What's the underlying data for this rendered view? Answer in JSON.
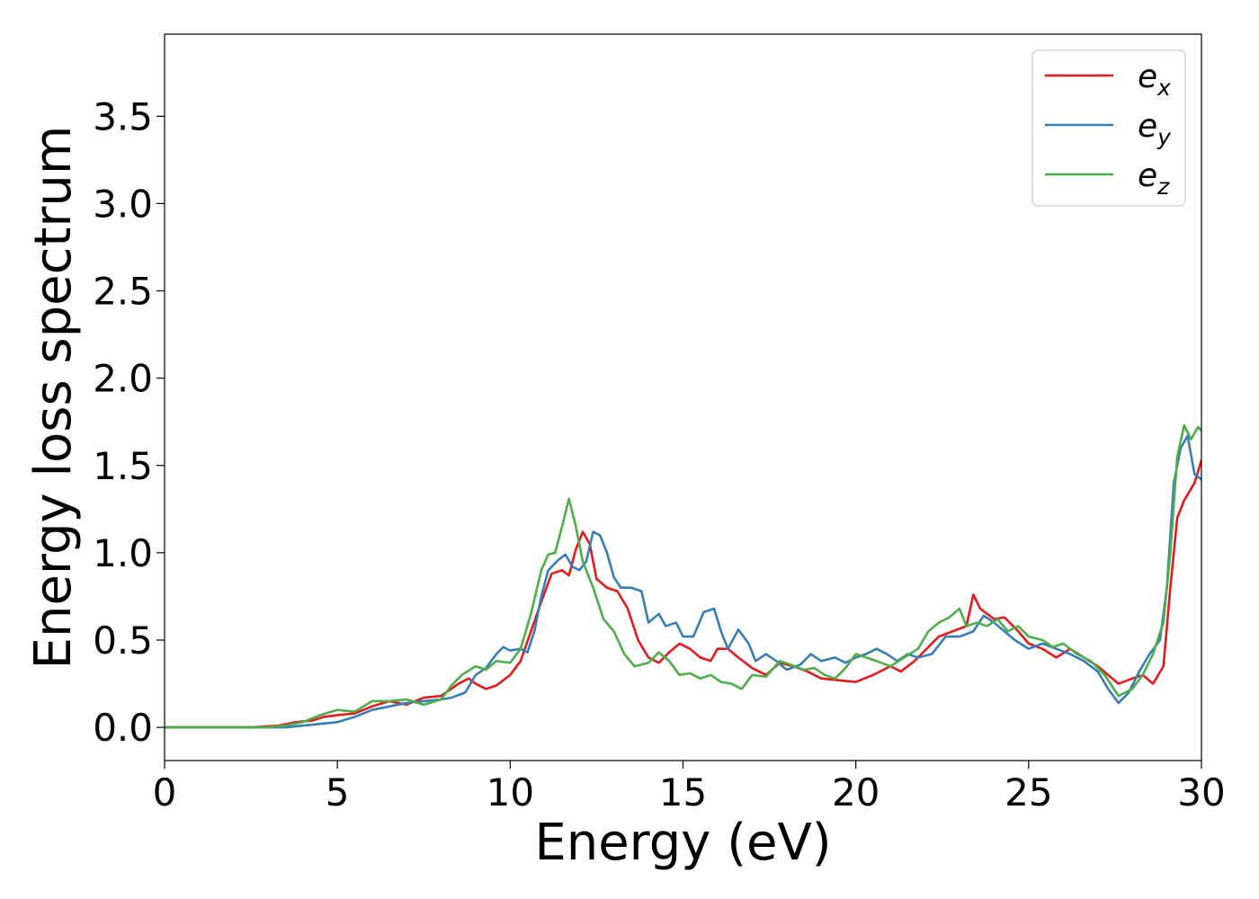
{
  "chart_data": {
    "type": "line",
    "title": "",
    "xlabel": "Energy (eV)",
    "ylabel": "Energy loss spectrum",
    "xlim": [
      0,
      30
    ],
    "ylim": [
      -0.19,
      3.97
    ],
    "xticks": [
      0,
      5,
      10,
      15,
      20,
      25,
      30
    ],
    "yticks": [
      0.0,
      0.5,
      1.0,
      1.5,
      2.0,
      2.5,
      3.0,
      3.5
    ],
    "grid": false,
    "legend_position": "top-right",
    "series": [
      {
        "name": "e_x",
        "label_base": "e",
        "label_sub": "x",
        "color": "#e41a1c",
        "points": [
          [
            0,
            0
          ],
          [
            2.5,
            0
          ],
          [
            3.3,
            0.01
          ],
          [
            3.8,
            0.03
          ],
          [
            4.3,
            0.04
          ],
          [
            4.6,
            0.06
          ],
          [
            5.0,
            0.07
          ],
          [
            5.5,
            0.08
          ],
          [
            6.0,
            0.12
          ],
          [
            6.5,
            0.15
          ],
          [
            7.0,
            0.13
          ],
          [
            7.5,
            0.17
          ],
          [
            8.0,
            0.18
          ],
          [
            8.5,
            0.25
          ],
          [
            8.8,
            0.28
          ],
          [
            9.0,
            0.25
          ],
          [
            9.3,
            0.22
          ],
          [
            9.6,
            0.24
          ],
          [
            10.0,
            0.3
          ],
          [
            10.3,
            0.38
          ],
          [
            10.6,
            0.55
          ],
          [
            10.9,
            0.72
          ],
          [
            11.2,
            0.88
          ],
          [
            11.5,
            0.9
          ],
          [
            11.7,
            0.87
          ],
          [
            11.9,
            1.02
          ],
          [
            12.1,
            1.12
          ],
          [
            12.3,
            1.05
          ],
          [
            12.5,
            0.85
          ],
          [
            12.8,
            0.8
          ],
          [
            13.1,
            0.78
          ],
          [
            13.4,
            0.68
          ],
          [
            13.7,
            0.5
          ],
          [
            14.0,
            0.4
          ],
          [
            14.3,
            0.37
          ],
          [
            14.6,
            0.43
          ],
          [
            14.9,
            0.48
          ],
          [
            15.2,
            0.45
          ],
          [
            15.5,
            0.4
          ],
          [
            15.8,
            0.38
          ],
          [
            16.0,
            0.45
          ],
          [
            16.3,
            0.45
          ],
          [
            16.6,
            0.4
          ],
          [
            17.0,
            0.34
          ],
          [
            17.4,
            0.3
          ],
          [
            17.8,
            0.37
          ],
          [
            18.2,
            0.35
          ],
          [
            18.6,
            0.32
          ],
          [
            19.0,
            0.28
          ],
          [
            19.5,
            0.27
          ],
          [
            20.0,
            0.26
          ],
          [
            20.5,
            0.3
          ],
          [
            21.0,
            0.35
          ],
          [
            21.3,
            0.32
          ],
          [
            21.7,
            0.38
          ],
          [
            22.0,
            0.44
          ],
          [
            22.4,
            0.52
          ],
          [
            22.8,
            0.55
          ],
          [
            23.2,
            0.58
          ],
          [
            23.4,
            0.76
          ],
          [
            23.6,
            0.68
          ],
          [
            24.0,
            0.62
          ],
          [
            24.3,
            0.63
          ],
          [
            24.7,
            0.55
          ],
          [
            25.0,
            0.48
          ],
          [
            25.4,
            0.45
          ],
          [
            25.8,
            0.4
          ],
          [
            26.2,
            0.45
          ],
          [
            26.6,
            0.4
          ],
          [
            27.0,
            0.35
          ],
          [
            27.3,
            0.3
          ],
          [
            27.6,
            0.25
          ],
          [
            28.0,
            0.28
          ],
          [
            28.3,
            0.3
          ],
          [
            28.6,
            0.25
          ],
          [
            28.9,
            0.35
          ],
          [
            29.1,
            0.8
          ],
          [
            29.3,
            1.2
          ],
          [
            29.5,
            1.3
          ],
          [
            29.8,
            1.4
          ],
          [
            30.0,
            1.53
          ]
        ]
      },
      {
        "name": "e_y",
        "label_base": "e",
        "label_sub": "y",
        "color": "#377eb8",
        "points": [
          [
            0,
            0
          ],
          [
            3.5,
            0
          ],
          [
            4.0,
            0.01
          ],
          [
            4.5,
            0.02
          ],
          [
            5.0,
            0.03
          ],
          [
            5.5,
            0.06
          ],
          [
            6.0,
            0.1
          ],
          [
            6.5,
            0.12
          ],
          [
            7.0,
            0.14
          ],
          [
            7.5,
            0.15
          ],
          [
            8.0,
            0.16
          ],
          [
            8.3,
            0.17
          ],
          [
            8.7,
            0.2
          ],
          [
            9.0,
            0.3
          ],
          [
            9.3,
            0.34
          ],
          [
            9.6,
            0.42
          ],
          [
            9.8,
            0.46
          ],
          [
            10.0,
            0.44
          ],
          [
            10.3,
            0.45
          ],
          [
            10.5,
            0.43
          ],
          [
            10.7,
            0.55
          ],
          [
            10.9,
            0.75
          ],
          [
            11.1,
            0.9
          ],
          [
            11.4,
            0.96
          ],
          [
            11.6,
            0.99
          ],
          [
            11.8,
            0.92
          ],
          [
            12.0,
            0.9
          ],
          [
            12.2,
            0.95
          ],
          [
            12.4,
            1.12
          ],
          [
            12.6,
            1.1
          ],
          [
            12.8,
            1.0
          ],
          [
            13.0,
            0.86
          ],
          [
            13.2,
            0.8
          ],
          [
            13.5,
            0.8
          ],
          [
            13.8,
            0.78
          ],
          [
            14.0,
            0.6
          ],
          [
            14.3,
            0.65
          ],
          [
            14.5,
            0.58
          ],
          [
            14.8,
            0.6
          ],
          [
            15.0,
            0.52
          ],
          [
            15.3,
            0.52
          ],
          [
            15.6,
            0.66
          ],
          [
            15.9,
            0.68
          ],
          [
            16.1,
            0.55
          ],
          [
            16.3,
            0.45
          ],
          [
            16.6,
            0.56
          ],
          [
            16.9,
            0.48
          ],
          [
            17.1,
            0.38
          ],
          [
            17.4,
            0.42
          ],
          [
            17.7,
            0.38
          ],
          [
            18.0,
            0.33
          ],
          [
            18.4,
            0.36
          ],
          [
            18.7,
            0.42
          ],
          [
            19.0,
            0.38
          ],
          [
            19.4,
            0.4
          ],
          [
            19.7,
            0.37
          ],
          [
            20.0,
            0.4
          ],
          [
            20.3,
            0.42
          ],
          [
            20.6,
            0.45
          ],
          [
            20.9,
            0.42
          ],
          [
            21.2,
            0.38
          ],
          [
            21.5,
            0.42
          ],
          [
            21.8,
            0.4
          ],
          [
            22.2,
            0.42
          ],
          [
            22.6,
            0.52
          ],
          [
            23.0,
            0.52
          ],
          [
            23.4,
            0.55
          ],
          [
            23.7,
            0.64
          ],
          [
            24.0,
            0.6
          ],
          [
            24.3,
            0.55
          ],
          [
            24.6,
            0.5
          ],
          [
            25.0,
            0.45
          ],
          [
            25.4,
            0.48
          ],
          [
            25.8,
            0.45
          ],
          [
            26.2,
            0.42
          ],
          [
            26.6,
            0.38
          ],
          [
            27.0,
            0.32
          ],
          [
            27.3,
            0.22
          ],
          [
            27.6,
            0.14
          ],
          [
            27.9,
            0.2
          ],
          [
            28.2,
            0.32
          ],
          [
            28.5,
            0.42
          ],
          [
            28.8,
            0.5
          ],
          [
            29.0,
            0.8
          ],
          [
            29.2,
            1.4
          ],
          [
            29.4,
            1.6
          ],
          [
            29.6,
            1.67
          ],
          [
            29.8,
            1.45
          ],
          [
            30.0,
            1.42
          ]
        ]
      },
      {
        "name": "e_z",
        "label_base": "e",
        "label_sub": "z",
        "color": "#4daf4a",
        "points": [
          [
            0,
            0
          ],
          [
            3.0,
            0
          ],
          [
            3.5,
            0.01
          ],
          [
            4.0,
            0.03
          ],
          [
            4.5,
            0.07
          ],
          [
            5.0,
            0.1
          ],
          [
            5.5,
            0.09
          ],
          [
            6.0,
            0.15
          ],
          [
            6.5,
            0.15
          ],
          [
            7.0,
            0.16
          ],
          [
            7.5,
            0.13
          ],
          [
            8.0,
            0.16
          ],
          [
            8.3,
            0.24
          ],
          [
            8.6,
            0.3
          ],
          [
            9.0,
            0.35
          ],
          [
            9.3,
            0.33
          ],
          [
            9.6,
            0.38
          ],
          [
            10.0,
            0.37
          ],
          [
            10.3,
            0.45
          ],
          [
            10.6,
            0.65
          ],
          [
            10.9,
            0.9
          ],
          [
            11.1,
            0.99
          ],
          [
            11.3,
            1.0
          ],
          [
            11.5,
            1.15
          ],
          [
            11.7,
            1.31
          ],
          [
            11.9,
            1.15
          ],
          [
            12.1,
            0.95
          ],
          [
            12.4,
            0.8
          ],
          [
            12.7,
            0.62
          ],
          [
            13.0,
            0.55
          ],
          [
            13.3,
            0.42
          ],
          [
            13.6,
            0.35
          ],
          [
            14.0,
            0.37
          ],
          [
            14.3,
            0.43
          ],
          [
            14.6,
            0.38
          ],
          [
            14.9,
            0.3
          ],
          [
            15.2,
            0.31
          ],
          [
            15.5,
            0.28
          ],
          [
            15.8,
            0.3
          ],
          [
            16.1,
            0.26
          ],
          [
            16.4,
            0.25
          ],
          [
            16.7,
            0.22
          ],
          [
            17.0,
            0.3
          ],
          [
            17.4,
            0.29
          ],
          [
            17.8,
            0.38
          ],
          [
            18.1,
            0.36
          ],
          [
            18.5,
            0.33
          ],
          [
            18.8,
            0.34
          ],
          [
            19.1,
            0.3
          ],
          [
            19.4,
            0.28
          ],
          [
            19.7,
            0.34
          ],
          [
            20.0,
            0.42
          ],
          [
            20.3,
            0.4
          ],
          [
            20.6,
            0.38
          ],
          [
            21.0,
            0.35
          ],
          [
            21.4,
            0.4
          ],
          [
            21.8,
            0.45
          ],
          [
            22.1,
            0.55
          ],
          [
            22.4,
            0.6
          ],
          [
            22.7,
            0.63
          ],
          [
            23.0,
            0.68
          ],
          [
            23.2,
            0.58
          ],
          [
            23.5,
            0.6
          ],
          [
            23.8,
            0.58
          ],
          [
            24.1,
            0.62
          ],
          [
            24.4,
            0.55
          ],
          [
            24.7,
            0.58
          ],
          [
            25.0,
            0.52
          ],
          [
            25.4,
            0.5
          ],
          [
            25.7,
            0.46
          ],
          [
            26.0,
            0.48
          ],
          [
            26.4,
            0.42
          ],
          [
            26.8,
            0.38
          ],
          [
            27.2,
            0.3
          ],
          [
            27.6,
            0.18
          ],
          [
            28.0,
            0.22
          ],
          [
            28.3,
            0.3
          ],
          [
            28.6,
            0.42
          ],
          [
            28.9,
            0.6
          ],
          [
            29.1,
            1.0
          ],
          [
            29.3,
            1.55
          ],
          [
            29.5,
            1.73
          ],
          [
            29.7,
            1.65
          ],
          [
            29.9,
            1.72
          ],
          [
            30.0,
            1.7
          ]
        ]
      }
    ]
  }
}
